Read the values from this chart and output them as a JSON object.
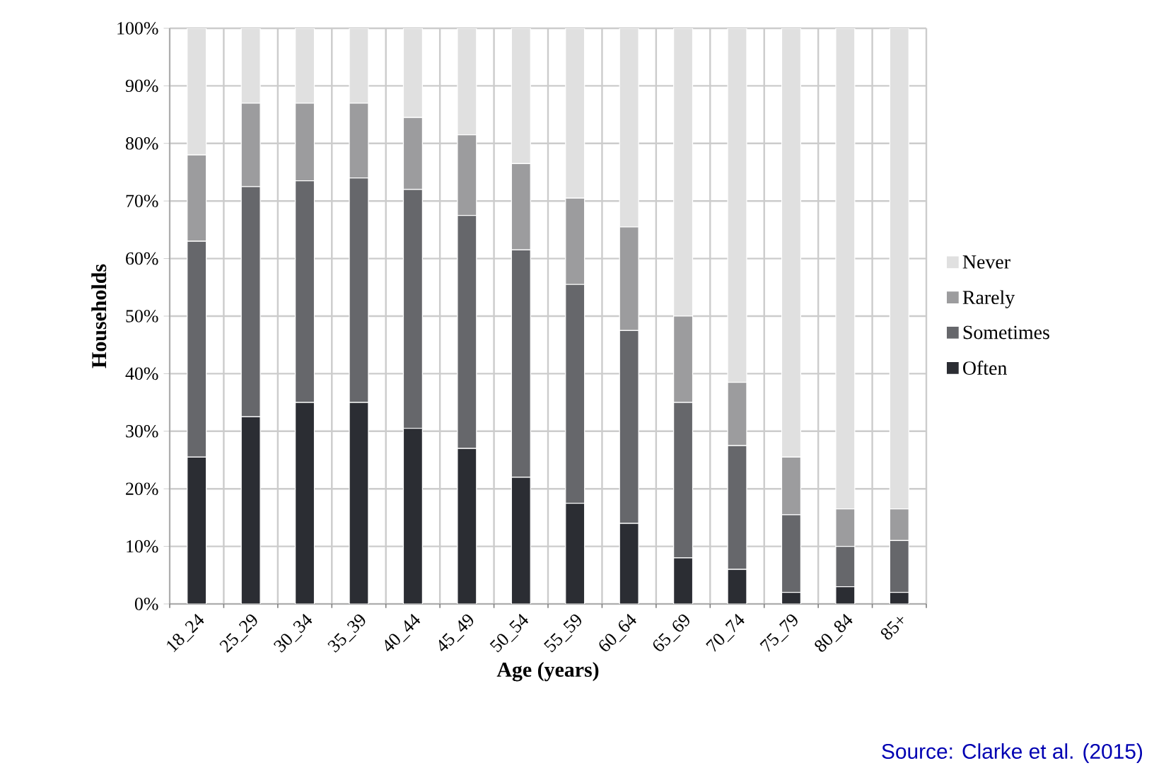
{
  "chart_data": {
    "type": "bar",
    "stacked": true,
    "xlabel": "Age (years)",
    "ylabel": "Households",
    "categories": [
      "18_24",
      "25_29",
      "30_34",
      "35_39",
      "40_44",
      "45_49",
      "50_54",
      "55_59",
      "60_64",
      "65_69",
      "70_74",
      "75_79",
      "80_84",
      "85+"
    ],
    "series": [
      {
        "name": "Often",
        "color": "#2b2d33",
        "values": [
          25.5,
          32.5,
          35,
          35,
          30.5,
          27,
          22,
          17.5,
          14,
          8,
          6,
          2,
          3,
          2
        ]
      },
      {
        "name": "Sometimes",
        "color": "#66676b",
        "values": [
          37.5,
          40,
          38.5,
          39,
          41.5,
          40.5,
          39.5,
          38,
          33.5,
          27,
          21.5,
          13.5,
          7,
          9
        ]
      },
      {
        "name": "Rarely",
        "color": "#9c9c9e",
        "values": [
          15,
          14.5,
          13.5,
          13,
          12.5,
          14,
          15,
          15,
          18,
          15,
          11,
          10,
          6.5,
          5.5
        ]
      },
      {
        "name": "Never",
        "color": "#e0e0e0",
        "values": [
          22,
          13,
          13,
          13,
          15.5,
          18.5,
          23.5,
          29.5,
          34.5,
          50,
          61.5,
          74.5,
          83.5,
          83.5
        ]
      }
    ],
    "ylim": [
      0,
      100
    ],
    "yticks": [
      {
        "value": 0,
        "label": "0%"
      },
      {
        "value": 10,
        "label": "10%"
      },
      {
        "value": 20,
        "label": "20%"
      },
      {
        "value": 30,
        "label": "30%"
      },
      {
        "value": 40,
        "label": "40%"
      },
      {
        "value": 50,
        "label": "50%"
      },
      {
        "value": 60,
        "label": "60%"
      },
      {
        "value": 70,
        "label": "70%"
      },
      {
        "value": 80,
        "label": "80%"
      },
      {
        "value": 90,
        "label": "90%"
      },
      {
        "value": 100,
        "label": "100%"
      }
    ],
    "grid": true,
    "legend": "right",
    "annotations": [
      "Source: Clarke et al. (2015)"
    ]
  }
}
